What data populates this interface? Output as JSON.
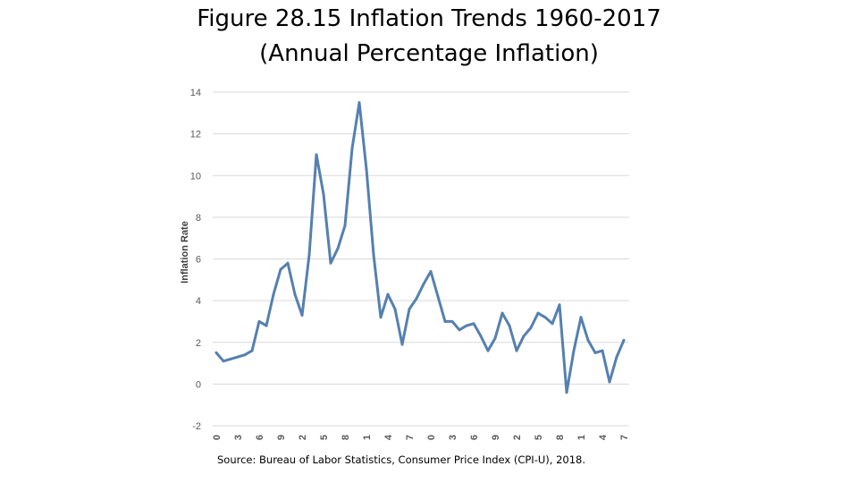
{
  "title": {
    "line1": "Figure 28.15 Inflation Trends 1960-2017",
    "line2": "(Annual Percentage Inflation)"
  },
  "source": "Source: Bureau of Labor Statistics, Consumer Price Index (CPI-U), 2018.",
  "colors": {
    "line": "#5580b0",
    "grid": "#d9d9d9",
    "tick_text": "#595959"
  },
  "chart_data": {
    "type": "line",
    "title": "Figure 28.15 Inflation Trends 1960-2017 (Annual Percentage Inflation)",
    "xlabel": "",
    "ylabel": "Inflation Rate",
    "ylim": [
      -2,
      14
    ],
    "yticks": [
      -2,
      0,
      2,
      4,
      6,
      8,
      10,
      12,
      14
    ],
    "xlim": [
      1960,
      2017
    ],
    "xtick_years": [
      1960,
      1963,
      1966,
      1969,
      1972,
      1975,
      1978,
      1981,
      1984,
      1987,
      1990,
      1993,
      1996,
      1999,
      2002,
      2005,
      2008,
      2011,
      2014,
      2017
    ],
    "xtick_labels": [
      "0",
      "3",
      "6",
      "9",
      "2",
      "5",
      "8",
      "1",
      "4",
      "7",
      "0",
      "3",
      "6",
      "9",
      "2",
      "5",
      "8",
      "1",
      "4",
      "7"
    ],
    "grid": true,
    "legend": "none",
    "series": [
      {
        "name": "Inflation Rate",
        "x": [
          1960,
          1961,
          1962,
          1963,
          1964,
          1965,
          1966,
          1967,
          1968,
          1969,
          1970,
          1971,
          1972,
          1973,
          1974,
          1975,
          1976,
          1977,
          1978,
          1979,
          1980,
          1981,
          1982,
          1983,
          1984,
          1985,
          1986,
          1987,
          1988,
          1989,
          1990,
          1991,
          1992,
          1993,
          1994,
          1995,
          1996,
          1997,
          1998,
          1999,
          2000,
          2001,
          2002,
          2003,
          2004,
          2005,
          2006,
          2007,
          2008,
          2009,
          2010,
          2011,
          2012,
          2013,
          2014,
          2015,
          2016,
          2017
        ],
        "values": [
          1.5,
          1.1,
          1.2,
          1.3,
          1.4,
          1.6,
          3.0,
          2.8,
          4.3,
          5.5,
          5.8,
          4.3,
          3.3,
          6.2,
          11.0,
          9.1,
          5.8,
          6.5,
          7.6,
          11.3,
          13.5,
          10.3,
          6.2,
          3.2,
          4.3,
          3.6,
          1.9,
          3.6,
          4.1,
          4.8,
          5.4,
          4.2,
          3.0,
          3.0,
          2.6,
          2.8,
          2.9,
          2.3,
          1.6,
          2.2,
          3.4,
          2.8,
          1.6,
          2.3,
          2.7,
          3.4,
          3.2,
          2.9,
          3.8,
          -0.4,
          1.6,
          3.2,
          2.1,
          1.5,
          1.6,
          0.1,
          1.3,
          2.1
        ]
      }
    ]
  }
}
